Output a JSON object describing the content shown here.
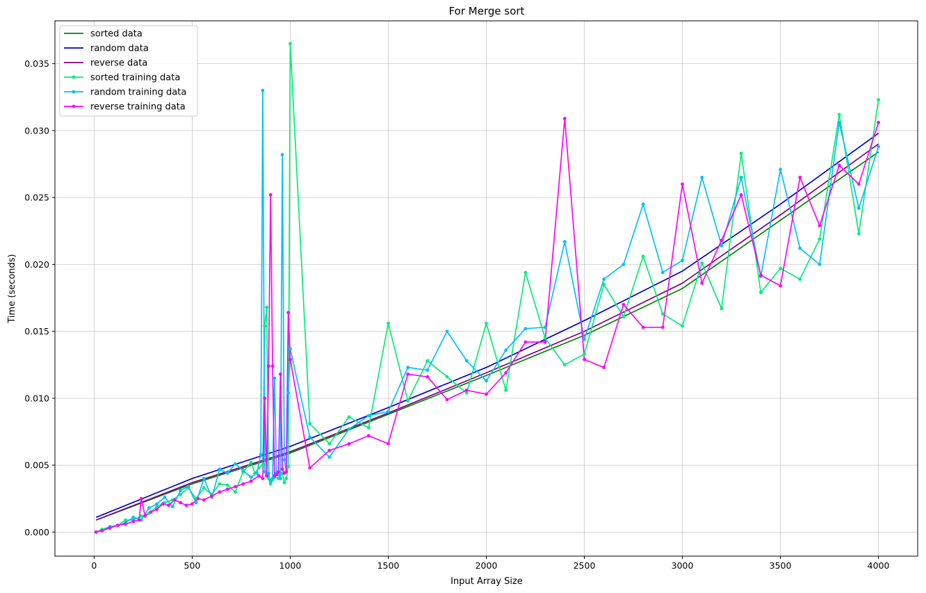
{
  "chart_data": {
    "type": "line",
    "title": "For Merge sort",
    "xlabel": "Input Array Size",
    "ylabel": "Time (seconds)",
    "xlim": [
      -200,
      4200
    ],
    "ylim": [
      -0.0018,
      0.0382
    ],
    "xticks": [
      0,
      500,
      1000,
      1500,
      2000,
      2500,
      3000,
      3500,
      4000
    ],
    "yticks": [
      0.0,
      0.005,
      0.01,
      0.015,
      0.02,
      0.025,
      0.03,
      0.035
    ],
    "xtick_labels": [
      "0",
      "500",
      "1000",
      "1500",
      "2000",
      "2500",
      "3000",
      "3500",
      "4000"
    ],
    "ytick_labels": [
      "0.000",
      "0.005",
      "0.010",
      "0.015",
      "0.020",
      "0.025",
      "0.030",
      "0.035"
    ],
    "grid": true,
    "legend_position": "top-left",
    "series": [
      {
        "name": "sorted data",
        "color": "#008000",
        "marker": false,
        "x": [
          10,
          500,
          1000,
          1500,
          2000,
          2500,
          3000,
          3500,
          4000
        ],
        "y": [
          0.0009,
          0.0036,
          0.0059,
          0.0088,
          0.0117,
          0.0147,
          0.0182,
          0.0233,
          0.0284
        ]
      },
      {
        "name": "random data",
        "color": "#0000cd",
        "marker": false,
        "x": [
          10,
          500,
          1000,
          1500,
          2000,
          2500,
          3000,
          3500,
          4000
        ],
        "y": [
          0.0011,
          0.004,
          0.0064,
          0.0093,
          0.0123,
          0.0158,
          0.0195,
          0.0245,
          0.0298
        ]
      },
      {
        "name": "reverse data",
        "color": "#800080",
        "marker": false,
        "x": [
          10,
          500,
          1000,
          1500,
          2000,
          2500,
          3000,
          3500,
          4000
        ],
        "y": [
          0.0009,
          0.0037,
          0.006,
          0.0089,
          0.0119,
          0.015,
          0.0186,
          0.0237,
          0.029
        ]
      },
      {
        "name": "sorted training data",
        "color": "#00ee76",
        "marker": true,
        "x": [
          10,
          40,
          80,
          120,
          160,
          200,
          240,
          280,
          320,
          360,
          400,
          440,
          480,
          520,
          560,
          600,
          640,
          680,
          720,
          760,
          800,
          820,
          840,
          860,
          870,
          880,
          890,
          900,
          910,
          920,
          940,
          960,
          970,
          980,
          990,
          1000,
          1100,
          1200,
          1300,
          1400,
          1500,
          1600,
          1700,
          1800,
          1900,
          2000,
          2100,
          2200,
          2300,
          2400,
          2500,
          2600,
          2700,
          2800,
          2900,
          3000,
          3100,
          3200,
          3300,
          3400,
          3500,
          3600,
          3700,
          3800,
          3900,
          4000
        ],
        "y": [
          0.0,
          0.0002,
          0.0004,
          0.0005,
          0.0009,
          0.0009,
          0.0012,
          0.0014,
          0.0019,
          0.0022,
          0.0024,
          0.0028,
          0.0033,
          0.0025,
          0.0033,
          0.0028,
          0.0036,
          0.0035,
          0.003,
          0.0045,
          0.0052,
          0.0044,
          0.0048,
          0.005,
          0.0154,
          0.0168,
          0.004,
          0.0036,
          0.0039,
          0.0041,
          0.004,
          0.0044,
          0.0037,
          0.004,
          0.0049,
          0.0365,
          0.0081,
          0.0066,
          0.0086,
          0.0078,
          0.0156,
          0.0098,
          0.0128,
          0.0116,
          0.0104,
          0.0156,
          0.0106,
          0.0194,
          0.0145,
          0.0125,
          0.0133,
          0.0185,
          0.0161,
          0.0206,
          0.0163,
          0.0154,
          0.0201,
          0.0167,
          0.0283,
          0.0179,
          0.0197,
          0.0189,
          0.0219,
          0.0312,
          0.0223,
          0.0323
        ]
      },
      {
        "name": "random training data",
        "color": "#00bfff",
        "marker": true,
        "x": [
          10,
          40,
          80,
          120,
          160,
          200,
          240,
          280,
          320,
          360,
          400,
          440,
          480,
          520,
          560,
          600,
          640,
          680,
          720,
          760,
          800,
          830,
          850,
          860,
          870,
          880,
          890,
          900,
          910,
          920,
          930,
          940,
          950,
          960,
          970,
          980,
          990,
          1000,
          1100,
          1200,
          1300,
          1400,
          1500,
          1600,
          1700,
          1800,
          1900,
          2000,
          2100,
          2200,
          2300,
          2400,
          2500,
          2600,
          2700,
          2800,
          2900,
          3000,
          3100,
          3200,
          3300,
          3400,
          3500,
          3600,
          3700,
          3800,
          3900,
          4000
        ],
        "y": [
          0.0,
          0.0001,
          0.0004,
          0.0005,
          0.0007,
          0.0011,
          0.0009,
          0.0018,
          0.0021,
          0.0026,
          0.0019,
          0.0031,
          0.0034,
          0.0022,
          0.004,
          0.0026,
          0.0047,
          0.0044,
          0.0051,
          0.0046,
          0.0041,
          0.0044,
          0.0058,
          0.033,
          0.0045,
          0.0042,
          0.0044,
          0.0038,
          0.004,
          0.0115,
          0.0044,
          0.0043,
          0.004,
          0.0282,
          0.0054,
          0.0045,
          0.0104,
          0.0137,
          0.0071,
          0.0056,
          0.0077,
          0.0087,
          0.009,
          0.0123,
          0.0121,
          0.015,
          0.0128,
          0.0113,
          0.0136,
          0.0152,
          0.0153,
          0.0217,
          0.0144,
          0.0189,
          0.02,
          0.0245,
          0.0194,
          0.0203,
          0.0265,
          0.0214,
          0.0265,
          0.0191,
          0.0271,
          0.0212,
          0.02,
          0.0306,
          0.0242,
          0.0288
        ]
      },
      {
        "name": "reverse training data",
        "color": "#ff00ff",
        "marker": true,
        "x": [
          10,
          40,
          80,
          120,
          160,
          200,
          230,
          240,
          260,
          290,
          320,
          350,
          380,
          410,
          440,
          470,
          500,
          530,
          560,
          600,
          640,
          680,
          720,
          760,
          800,
          840,
          860,
          870,
          880,
          890,
          900,
          910,
          920,
          930,
          940,
          950,
          960,
          970,
          980,
          990,
          1000,
          1100,
          1200,
          1300,
          1400,
          1500,
          1600,
          1700,
          1800,
          1900,
          2000,
          2100,
          2200,
          2300,
          2400,
          2500,
          2600,
          2700,
          2800,
          2900,
          3000,
          3100,
          3200,
          3300,
          3400,
          3500,
          3600,
          3700,
          3800,
          3900,
          4000
        ],
        "y": [
          0.0,
          0.0001,
          0.0003,
          0.0005,
          0.0006,
          0.0008,
          0.0009,
          0.0025,
          0.0012,
          0.0015,
          0.0017,
          0.0021,
          0.002,
          0.0024,
          0.0022,
          0.002,
          0.0021,
          0.0025,
          0.0024,
          0.0027,
          0.003,
          0.0032,
          0.0034,
          0.0036,
          0.0038,
          0.0042,
          0.004,
          0.01,
          0.0042,
          0.0124,
          0.0252,
          0.0124,
          0.0042,
          0.0043,
          0.0045,
          0.0118,
          0.0047,
          0.0044,
          0.0045,
          0.0164,
          0.0129,
          0.0048,
          0.0061,
          0.0066,
          0.0072,
          0.0066,
          0.0118,
          0.0116,
          0.0099,
          0.0106,
          0.0103,
          0.0119,
          0.0142,
          0.0142,
          0.0309,
          0.0129,
          0.0123,
          0.017,
          0.0153,
          0.0153,
          0.026,
          0.0186,
          0.0218,
          0.0252,
          0.0192,
          0.0184,
          0.0265,
          0.0229,
          0.0274,
          0.026,
          0.0306
        ]
      }
    ]
  }
}
